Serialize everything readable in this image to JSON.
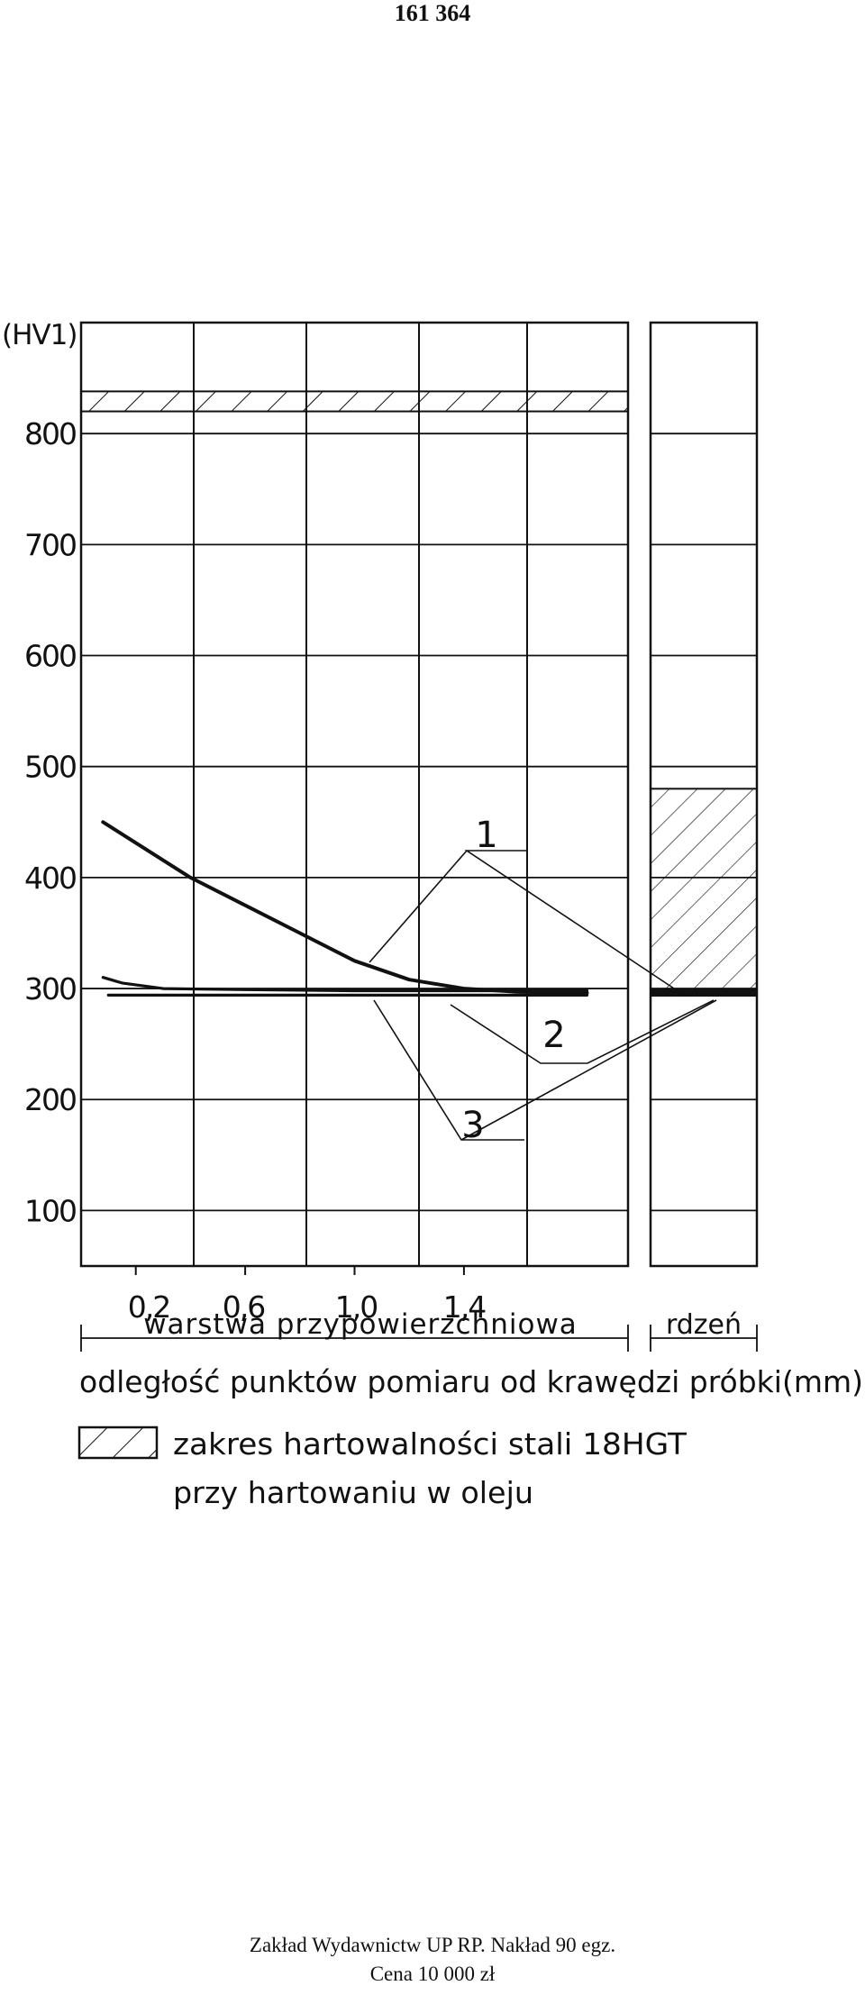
{
  "page": {
    "doc_number": "161 364",
    "footer_line1": "Zakład Wydawnictw UP RP. Nakład 90 egz.",
    "footer_line2": "Cena 10 000 zł"
  },
  "chart_data": {
    "type": "line",
    "ylabel": "(HV1)",
    "xlabel": "odległość punktów pomiaru od krawędzi próbki(mm)",
    "yticks": [
      100,
      200,
      300,
      400,
      500,
      600,
      700,
      800
    ],
    "xticks": [
      "0,2",
      "0,6",
      "1,0",
      "1,4"
    ],
    "xtick_values": [
      0.2,
      0.6,
      1.0,
      1.4
    ],
    "ylim": [
      50,
      900
    ],
    "xlim": [
      0,
      2.0
    ],
    "grid": true,
    "region_labels": {
      "surface": "warstwa przypowierzchniowa",
      "core": "rdzeń"
    },
    "legend": {
      "hatch_label_line1": "zakres hartowalności stali 18HGT",
      "hatch_label_line2": "przy hartowaniu w oleju"
    },
    "hardenability_band_surface": [
      820,
      838
    ],
    "hardenability_band_core": [
      295,
      480
    ],
    "series": [
      {
        "name": "1",
        "x": [
          0.08,
          0.4,
          0.8,
          1.0,
          1.2,
          1.4,
          1.6,
          1.85
        ],
        "y": [
          450,
          400,
          350,
          325,
          308,
          300,
          297,
          296
        ],
        "core_value": 296
      },
      {
        "name": "2",
        "x": [
          0.08,
          0.15,
          0.3,
          0.6,
          1.0,
          1.4,
          1.85
        ],
        "y": [
          310,
          305,
          300,
          299,
          298,
          298,
          298
        ],
        "core_value": 298
      },
      {
        "name": "3",
        "x": [
          0.1,
          0.6,
          1.0,
          1.4,
          1.85
        ],
        "y": [
          294,
          294,
          294,
          294,
          294
        ],
        "core_value": 294
      }
    ],
    "colors": {
      "ink": "#111111",
      "paper": "#ffffff"
    }
  }
}
